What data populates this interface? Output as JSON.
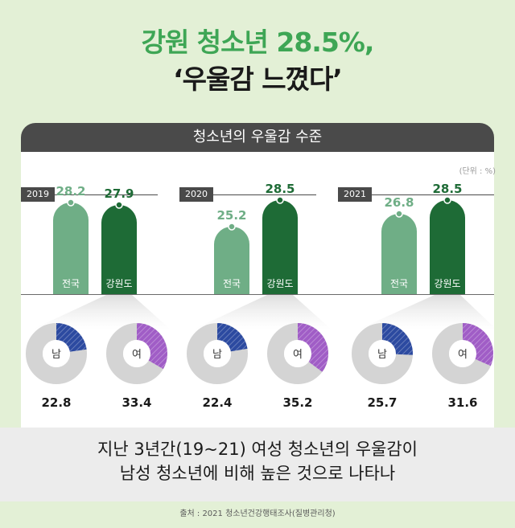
{
  "headline": {
    "line1": "강원 청소년 28.5%,",
    "line2": "‘우울감 느꼈다’"
  },
  "banner_title": "청소년의 우울감 수준",
  "unit_label": "(단위 : %)",
  "colors": {
    "national": "#6fae86",
    "gangwon": "#1e6b36",
    "male": "#2c4aa0",
    "female": "#a05dc6",
    "ring": "#d4d4d4"
  },
  "chart_data": {
    "type": "bar",
    "groups": [
      {
        "year": "2019",
        "bars": [
          {
            "label": "전국",
            "value": 28.2
          },
          {
            "label": "강원도",
            "value": 27.9
          }
        ],
        "gender": [
          {
            "label": "남",
            "value": 22.8
          },
          {
            "label": "여",
            "value": 33.4
          }
        ]
      },
      {
        "year": "2020",
        "bars": [
          {
            "label": "전국",
            "value": 25.2
          },
          {
            "label": "강원도",
            "value": 28.5
          }
        ],
        "gender": [
          {
            "label": "남",
            "value": 22.4
          },
          {
            "label": "여",
            "value": 35.2
          }
        ]
      },
      {
        "year": "2021",
        "bars": [
          {
            "label": "전국",
            "value": 26.8
          },
          {
            "label": "강원도",
            "value": 28.5
          }
        ],
        "gender": [
          {
            "label": "남",
            "value": 25.7
          },
          {
            "label": "여",
            "value": 31.6
          }
        ]
      }
    ]
  },
  "summary": {
    "line1": "지난 3년간(19~21) 여성 청소년의 우울감이",
    "line2": "남성 청소년에 비해 높은 것으로 나타나"
  },
  "source": "출처 : 2021 청소년건강행태조사(질병관리청)"
}
